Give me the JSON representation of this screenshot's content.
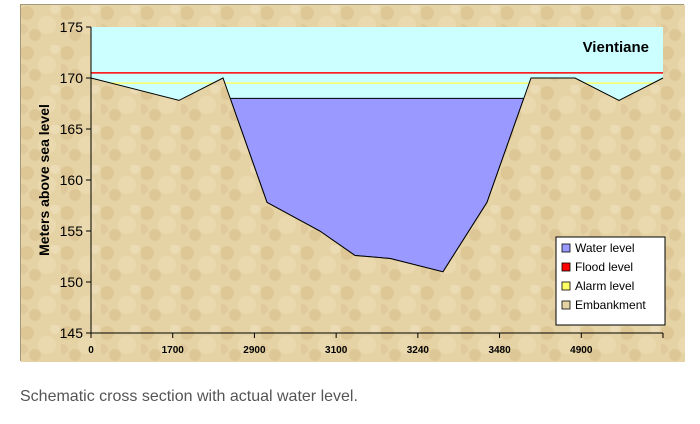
{
  "caption": "Schematic cross section with actual water level.",
  "chart_data": {
    "type": "area",
    "title": "Vientiane",
    "xlabel": "",
    "ylabel": "Meters above sea level",
    "ylim": [
      145,
      175
    ],
    "yticks": [
      145,
      150,
      155,
      160,
      165,
      170,
      175
    ],
    "xtick_labels": [
      "0",
      "1700",
      "2900",
      "3100",
      "3240",
      "3480",
      "4900"
    ],
    "flood_level": 170.5,
    "alarm_level": 169.5,
    "water_level": 168,
    "embankment_profile": [
      {
        "x": 0,
        "y": 170
      },
      {
        "x": 1,
        "y": 167.8
      },
      {
        "x": 1.5,
        "y": 170
      },
      {
        "x": 2,
        "y": 157.8
      },
      {
        "x": 2.6,
        "y": 155
      },
      {
        "x": 3,
        "y": 152.6
      },
      {
        "x": 3.4,
        "y": 152.3
      },
      {
        "x": 4,
        "y": 151
      },
      {
        "x": 4.5,
        "y": 157.8
      },
      {
        "x": 5,
        "y": 170
      },
      {
        "x": 5.5,
        "y": 170
      },
      {
        "x": 6,
        "y": 167.8
      },
      {
        "x": 6.5,
        "y": 170
      }
    ],
    "series": [
      {
        "name": "Water level",
        "color": "#9999ff"
      },
      {
        "name": "Flood level",
        "color": "#ff0000"
      },
      {
        "name": "Alarm level",
        "color": "#ffff66"
      },
      {
        "name": "Embankment",
        "color": "#e6d3a5"
      }
    ],
    "colors": {
      "sky": "#ccffff",
      "ground": "#e6d3a5",
      "outline": "#000000"
    },
    "legend_position": "bottom-right",
    "grid": false
  }
}
